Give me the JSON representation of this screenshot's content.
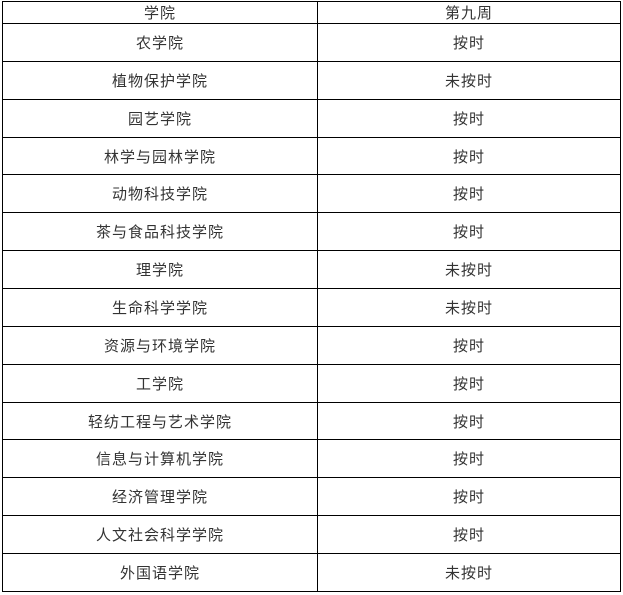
{
  "table": {
    "headers": {
      "college": "学院",
      "week": "第九周"
    },
    "rows": [
      {
        "college": "农学院",
        "status": "按时"
      },
      {
        "college": "植物保护学院",
        "status": "未按时"
      },
      {
        "college": "园艺学院",
        "status": "按时"
      },
      {
        "college": "林学与园林学院",
        "status": "按时"
      },
      {
        "college": "动物科技学院",
        "status": "按时"
      },
      {
        "college": "茶与食品科技学院",
        "status": "按时"
      },
      {
        "college": "理学院",
        "status": "未按时"
      },
      {
        "college": "生命科学学院",
        "status": "未按时"
      },
      {
        "college": "资源与环境学院",
        "status": "按时"
      },
      {
        "college": "工学院",
        "status": "按时"
      },
      {
        "college": "轻纺工程与艺术学院",
        "status": "按时"
      },
      {
        "college": "信息与计算机学院",
        "status": "按时"
      },
      {
        "college": "经济管理学院",
        "status": "按时"
      },
      {
        "college": "人文社会科学学院",
        "status": "按时"
      },
      {
        "college": "外国语学院",
        "status": "未按时"
      }
    ],
    "colors": {
      "border": "#000000",
      "text": "#333333",
      "background": "#ffffff"
    }
  }
}
